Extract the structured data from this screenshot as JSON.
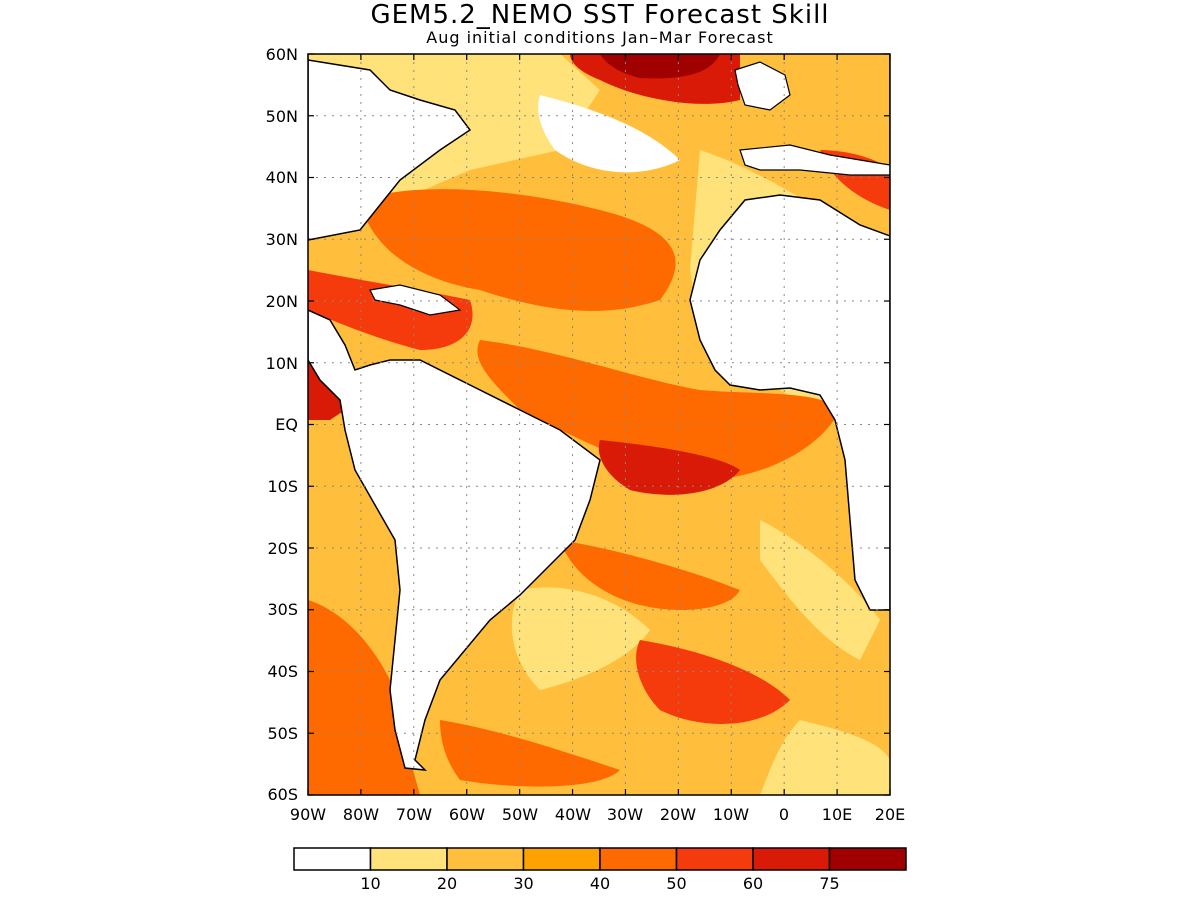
{
  "header": {
    "title": "GEM5.2_NEMO SST Forecast Skill",
    "subtitle": "Aug initial conditions  Jan–Mar Forecast"
  },
  "map": {
    "lat_labels": [
      "60N",
      "50N",
      "40N",
      "30N",
      "20N",
      "10N",
      "EQ",
      "10S",
      "20S",
      "30S",
      "40S",
      "50S",
      "60S"
    ],
    "lon_labels": [
      "90W",
      "80W",
      "70W",
      "60W",
      "50W",
      "40W",
      "30W",
      "20W",
      "10W",
      "0",
      "10E",
      "20E"
    ],
    "lat_range": [
      -60,
      60
    ],
    "lon_range": [
      -90,
      20
    ],
    "grid": "dotted"
  },
  "legend": {
    "boundaries": [
      "10",
      "20",
      "30",
      "40",
      "50",
      "60",
      "75"
    ],
    "colors": [
      "#ffffff",
      "#ffe27a",
      "#ffbf3d",
      "#ffa200",
      "#ff6a00",
      "#f53a0c",
      "#d81a06",
      "#a00000"
    ],
    "land_color": "#ffffff"
  }
}
